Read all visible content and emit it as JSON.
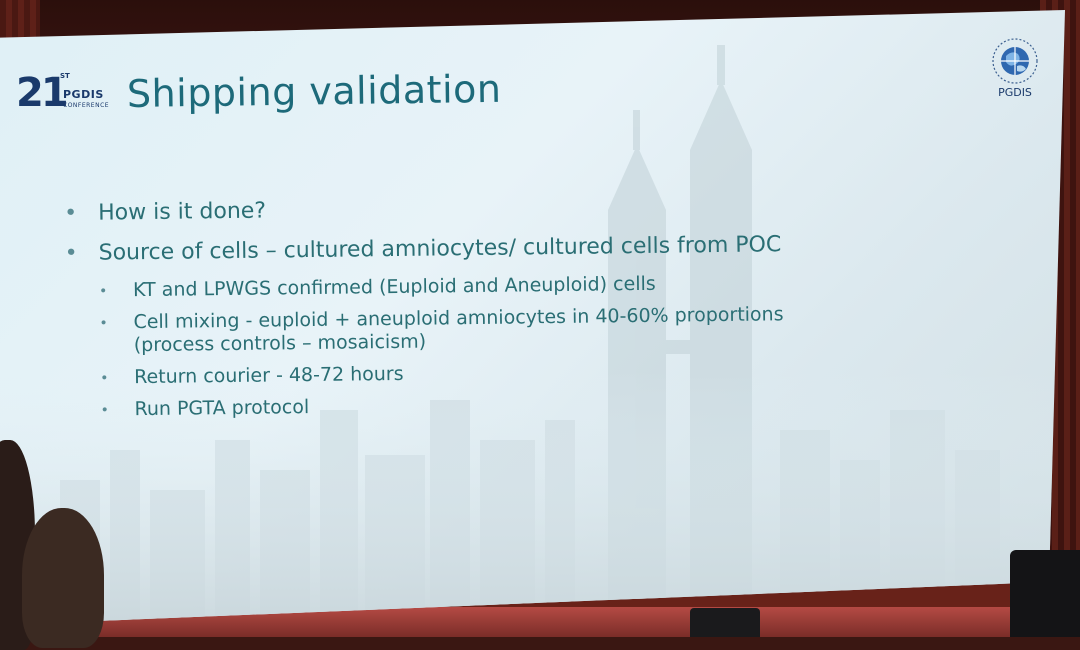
{
  "slide": {
    "title": "Shipping validation",
    "conference_logo": {
      "number": "21",
      "suffix": "ST",
      "name": "PGDIS",
      "subtitle": "CONFERENCE"
    },
    "society_logo": {
      "label": "PGDIS"
    },
    "bullets": [
      {
        "text": "How is it done?"
      },
      {
        "text": "Source of cells – cultured amniocytes/ cultured cells from POC",
        "sub_bullets": [
          {
            "text": "KT and LPWGS confirmed (Euploid and Aneuploid) cells",
            "continuation": ""
          },
          {
            "text": "Cell mixing - euploid + aneuploid amniocytes in 40-60% proportions",
            "continuation": "(process controls – mosaicism)"
          },
          {
            "text": "Return courier  - 48-72 hours",
            "continuation": ""
          },
          {
            "text": "Run PGTA protocol",
            "continuation": ""
          }
        ]
      }
    ]
  },
  "colors": {
    "title": "#1d6a7a",
    "body_text": "#2a6e74",
    "screen_background": "#e3f0f5",
    "curtain": "#5a1f18",
    "logo_blue": "#1a3a6b"
  }
}
